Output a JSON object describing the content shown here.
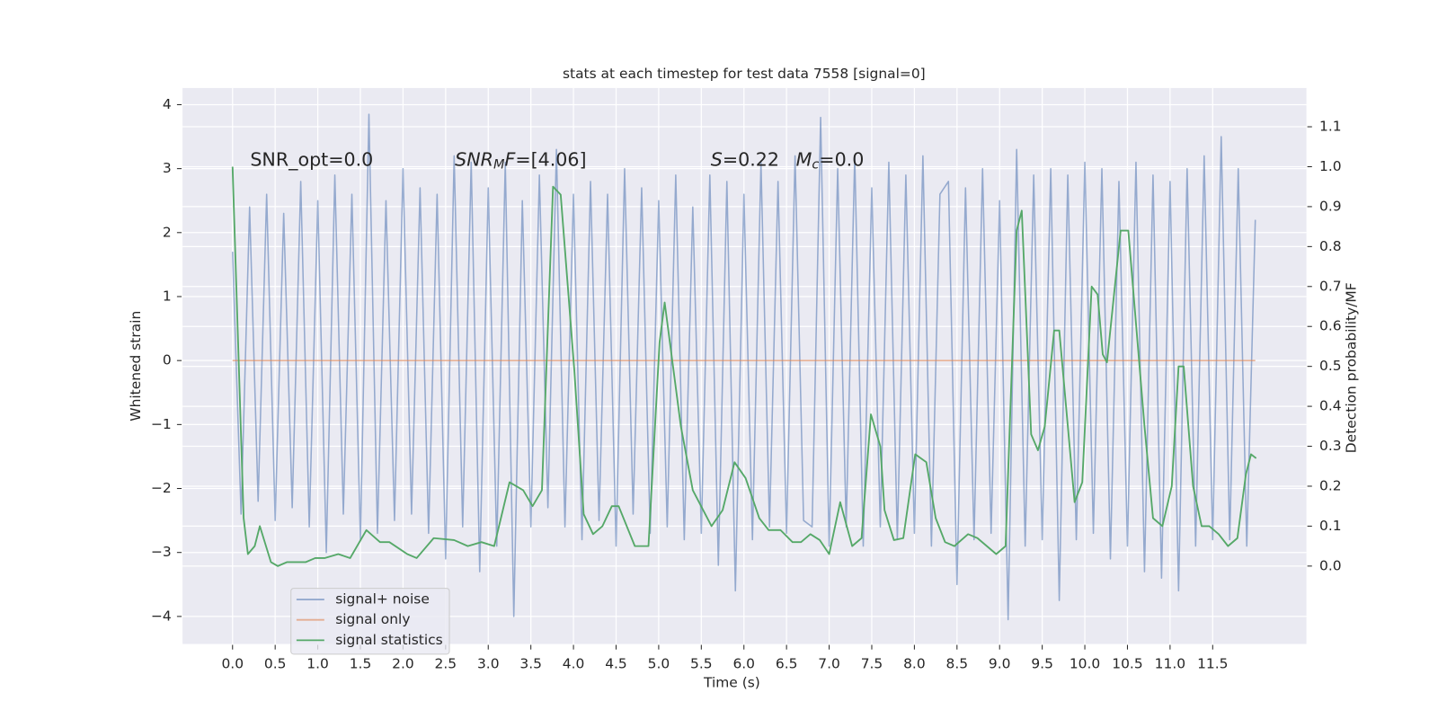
{
  "chart_data": {
    "type": "line",
    "title": "stats at each timestep for test data 7558 [signal=0]",
    "x_label": "Time (s)",
    "y_label": "Whitened strain",
    "y2_label": "Detection probability/MF",
    "annotations": [
      [
        "SNR_opt=0.0"
      ],
      [
        "SNR",
        "M",
        "F",
        "=[4.06]"
      ],
      [
        "S",
        "=0.22"
      ],
      [
        "M",
        "c",
        "=0.0"
      ]
    ],
    "xlim": [
      -0.587,
      12.6
    ],
    "ylim": [
      -4.43,
      4.26
    ],
    "y2lim": [
      -0.195,
      1.197
    ],
    "xticks": [
      {
        "value": 0,
        "label": "0.0"
      },
      0.5,
      {
        "value": 1,
        "label": "1.0"
      },
      1.5,
      {
        "value": 2,
        "label": "2.0"
      },
      2.5,
      {
        "value": 3,
        "label": "3.0"
      },
      3.5,
      {
        "value": 4,
        "label": "4.0"
      },
      4.5,
      {
        "value": 5,
        "label": "5.0"
      },
      5.5,
      {
        "value": 6,
        "label": "6.0"
      },
      6.5,
      {
        "value": 7,
        "label": "7.0"
      },
      7.5,
      {
        "value": 8,
        "label": "8.0"
      },
      8.5,
      {
        "value": 9,
        "label": "9.0"
      },
      9.5,
      {
        "value": 10,
        "label": "10.0"
      },
      10.5,
      {
        "value": 11,
        "label": "11.0"
      },
      11.5
    ],
    "yticks": [
      {
        "value": -4,
        "label": "−4"
      },
      {
        "value": -3,
        "label": "−3"
      },
      {
        "value": -2,
        "label": "−2"
      },
      {
        "value": -1,
        "label": "−1"
      },
      0,
      1,
      2,
      3,
      4
    ],
    "y2ticks": [
      {
        "value": 0,
        "label": "0.0"
      },
      0.1,
      0.2,
      0.3,
      0.4,
      0.5,
      0.6,
      0.7,
      0.8,
      0.9,
      {
        "value": 1,
        "label": "1.0"
      },
      1.1
    ],
    "grid": true,
    "legend": "lower left",
    "series": [
      {
        "name": "signal+ noise",
        "color": "#4c72b0",
        "x": [
          0,
          0.1,
          0.2,
          0.3,
          0.4,
          0.5,
          0.6,
          0.7,
          0.8,
          0.9,
          1.0,
          1.1,
          1.2,
          1.3,
          1.4,
          1.5,
          1.6,
          1.7,
          1.8,
          1.9,
          2.0,
          2.1,
          2.2,
          2.3,
          2.4,
          2.5,
          2.6,
          2.7,
          2.8,
          2.9,
          3.0,
          3.1,
          3.2,
          3.3,
          3.4,
          3.5,
          3.6,
          3.7,
          3.8,
          3.9,
          4.0,
          4.1,
          4.2,
          4.3,
          4.4,
          4.5,
          4.6,
          4.7,
          4.8,
          4.9,
          5.0,
          5.1,
          5.2,
          5.3,
          5.4,
          5.5,
          5.6,
          5.7,
          5.8,
          5.9,
          6.0,
          6.1,
          6.2,
          6.3,
          6.4,
          6.5,
          6.6,
          6.7,
          6.8,
          6.9,
          7.0,
          7.1,
          7.2,
          7.3,
          7.4,
          7.5,
          7.6,
          7.7,
          7.8,
          7.9,
          8.0,
          8.1,
          8.2,
          8.3,
          8.4,
          8.5,
          8.6,
          8.7,
          8.8,
          8.9,
          9.0,
          9.1,
          9.2,
          9.3,
          9.4,
          9.5,
          9.6,
          9.7,
          9.8,
          9.9,
          10.0,
          10.1,
          10.2,
          10.3,
          10.4,
          10.5,
          10.6,
          10.7,
          10.8,
          10.9,
          11.0,
          11.1,
          11.2,
          11.3,
          11.4,
          11.5,
          11.6,
          11.7,
          11.8,
          11.9,
          12.0
        ],
        "values": [
          1.7,
          -2.4,
          2.4,
          -2.2,
          2.6,
          -2.5,
          2.3,
          -2.3,
          2.8,
          -2.6,
          2.5,
          -3.0,
          2.9,
          -2.4,
          2.6,
          -2.8,
          3.85,
          -2.7,
          2.5,
          -2.5,
          3.0,
          -2.4,
          2.7,
          -2.7,
          2.6,
          -3.1,
          3.2,
          -2.6,
          3.1,
          -3.3,
          2.7,
          -2.9,
          3.1,
          -4.0,
          2.5,
          -2.6,
          2.9,
          -2.3,
          3.3,
          -2.6,
          2.6,
          -2.8,
          2.8,
          -2.5,
          2.6,
          -2.9,
          3.0,
          -2.4,
          2.7,
          -2.7,
          2.5,
          -2.6,
          2.9,
          -2.8,
          2.4,
          -2.7,
          2.9,
          -3.2,
          2.8,
          -3.6,
          2.6,
          -2.8,
          3.1,
          -2.6,
          2.8,
          -2.7,
          3.2,
          -2.5,
          -2.6,
          3.8,
          -2.9,
          3.0,
          -2.6,
          3.2,
          -2.9,
          2.7,
          -2.6,
          3.1,
          -2.8,
          2.9,
          -2.7,
          3.2,
          -2.9,
          2.6,
          2.8,
          -3.5,
          2.7,
          -2.8,
          3.0,
          -2.7,
          2.5,
          -4.05,
          3.3,
          -2.9,
          2.9,
          -2.8,
          3.0,
          -3.75,
          2.9,
          -2.8,
          3.1,
          -2.7,
          3.0,
          -3.1,
          2.8,
          -2.9,
          3.1,
          -3.3,
          2.9,
          -3.4,
          2.8,
          -3.6,
          3.0,
          -2.9,
          3.2,
          -2.8,
          3.5,
          -2.8,
          3.0,
          -2.9,
          2.2
        ]
      },
      {
        "name": "signal only",
        "color": "#dd8452",
        "x": [
          0,
          12.0
        ],
        "values": [
          0,
          0
        ]
      },
      {
        "name": "signal statistics",
        "color": "#55a868",
        "axis": "y2",
        "x": [
          0,
          0.13,
          0.18,
          0.26,
          0.32,
          0.45,
          0.53,
          0.64,
          0.86,
          0.97,
          1.08,
          1.24,
          1.38,
          1.57,
          1.73,
          1.84,
          2.05,
          2.16,
          2.36,
          2.6,
          2.76,
          2.92,
          3.07,
          3.25,
          3.41,
          3.52,
          3.63,
          3.76,
          3.85,
          4.01,
          4.12,
          4.23,
          4.34,
          4.45,
          4.53,
          4.72,
          4.88,
          5.01,
          5.07,
          5.26,
          5.4,
          5.62,
          5.75,
          5.89,
          6.02,
          6.18,
          6.29,
          6.43,
          6.57,
          6.67,
          6.78,
          6.89,
          7.0,
          7.13,
          7.27,
          7.38,
          7.49,
          7.6,
          7.65,
          7.76,
          7.87,
          8.01,
          8.14,
          8.25,
          8.36,
          8.47,
          8.63,
          8.74,
          8.85,
          8.96,
          9.07,
          9.2,
          9.26,
          9.37,
          9.45,
          9.53,
          9.64,
          9.7,
          9.88,
          9.97,
          10.08,
          10.15,
          10.21,
          10.26,
          10.42,
          10.51,
          10.7,
          10.8,
          10.91,
          11.02,
          11.1,
          11.16,
          11.27,
          11.37,
          11.46,
          11.57,
          11.68,
          11.79,
          11.89,
          11.95,
          12.01
        ],
        "values": [
          1.0,
          0.12,
          0.03,
          0.05,
          0.1,
          0.01,
          0.0,
          0.01,
          0.01,
          0.02,
          0.02,
          0.03,
          0.02,
          0.09,
          0.06,
          0.06,
          0.03,
          0.02,
          0.07,
          0.065,
          0.05,
          0.06,
          0.05,
          0.21,
          0.19,
          0.15,
          0.19,
          0.95,
          0.93,
          0.49,
          0.13,
          0.08,
          0.1,
          0.15,
          0.15,
          0.05,
          0.05,
          0.56,
          0.66,
          0.35,
          0.19,
          0.1,
          0.14,
          0.26,
          0.22,
          0.12,
          0.09,
          0.09,
          0.06,
          0.06,
          0.08,
          0.065,
          0.03,
          0.16,
          0.05,
          0.07,
          0.38,
          0.3,
          0.14,
          0.065,
          0.07,
          0.28,
          0.26,
          0.12,
          0.06,
          0.05,
          0.08,
          0.07,
          0.05,
          0.03,
          0.05,
          0.84,
          0.89,
          0.33,
          0.29,
          0.35,
          0.59,
          0.59,
          0.16,
          0.21,
          0.7,
          0.68,
          0.53,
          0.51,
          0.84,
          0.84,
          0.35,
          0.12,
          0.1,
          0.2,
          0.5,
          0.5,
          0.2,
          0.1,
          0.1,
          0.08,
          0.05,
          0.07,
          0.23,
          0.28,
          0.27
        ]
      }
    ]
  }
}
